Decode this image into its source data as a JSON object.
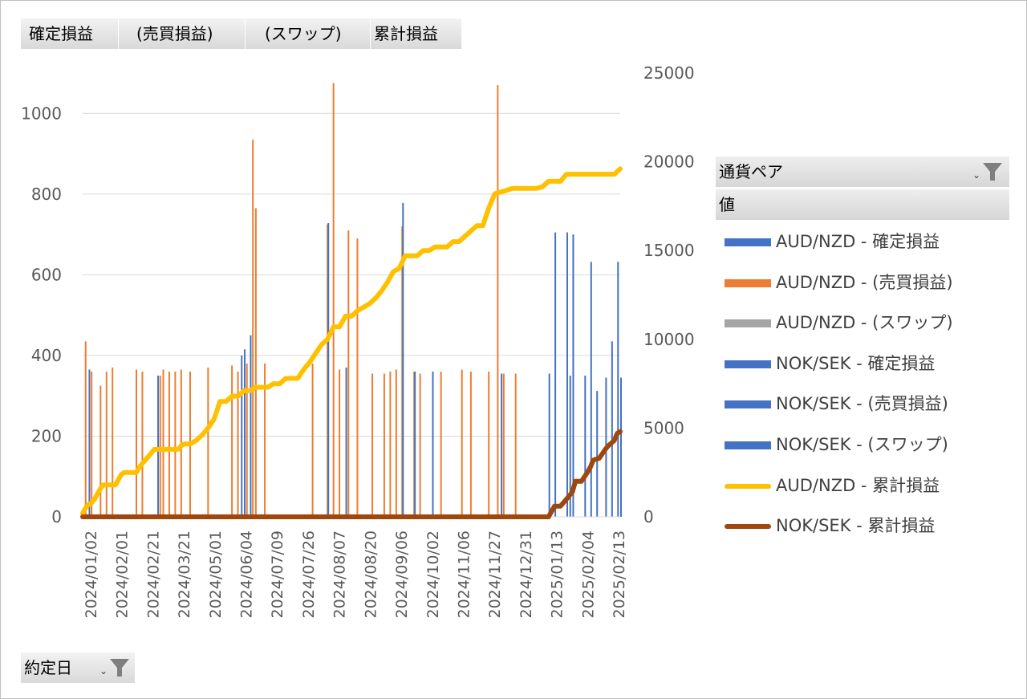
{
  "filters_top": [
    "確定損益",
    "(売買損益)",
    "(スワップ)",
    "累計損益"
  ],
  "date_filter": "約定日",
  "legend_header": {
    "field": "通貨ペア",
    "values": "値"
  },
  "legend": [
    {
      "label": "AUD/NZD -  確定損益",
      "color": "#4472C4",
      "kind": "bar"
    },
    {
      "label": "AUD/NZD -     (売買損益)",
      "color": "#ED7D31",
      "kind": "bar"
    },
    {
      "label": "AUD/NZD -     (スワップ)",
      "color": "#A5A5A5",
      "kind": "bar"
    },
    {
      "label": "NOK/SEK -  確定損益",
      "color": "#4472C4",
      "kind": "bar"
    },
    {
      "label": "NOK/SEK -     (売買損益)",
      "color": "#4472C4",
      "kind": "bar"
    },
    {
      "label": "NOK/SEK -     (スワップ)",
      "color": "#4472C4",
      "kind": "bar"
    },
    {
      "label": "AUD/NZD - 累計損益",
      "color": "#FFC000",
      "kind": "line"
    },
    {
      "label": "NOK/SEK - 累計損益",
      "color": "#9E480E",
      "kind": "line"
    }
  ],
  "chart_data": {
    "type": "bar",
    "y_left": {
      "ylim": [
        0,
        1100
      ],
      "ticks": [
        "0",
        "200",
        "400",
        "600",
        "800",
        "1000"
      ]
    },
    "y_right": {
      "ylim": [
        0,
        25000
      ],
      "ticks": [
        "0",
        "5000",
        "10000",
        "15000",
        "20000",
        "25000"
      ]
    },
    "x_tick_labels": [
      "2024/01/02",
      "2024/02/01",
      "2024/02/21",
      "2024/03/21",
      "2024/05/01",
      "2024/06/04",
      "2024/07/09",
      "2024/07/26",
      "2024/08/07",
      "2024/08/20",
      "2024/09/06",
      "2024/10/02",
      "2024/11/06",
      "2024/11/27",
      "2024/12/31",
      "2025/01/13",
      "2025/02/04",
      "2025/02/13"
    ],
    "bars_aud_nzd": [
      {
        "i": 1,
        "v": 435
      },
      {
        "i": 3,
        "v": 360
      },
      {
        "i": 6,
        "v": 325
      },
      {
        "i": 8,
        "v": 360
      },
      {
        "i": 10,
        "v": 370
      },
      {
        "i": 18,
        "v": 365
      },
      {
        "i": 20,
        "v": 360
      },
      {
        "i": 26,
        "v": 350
      },
      {
        "i": 27,
        "v": 365
      },
      {
        "i": 29,
        "v": 360
      },
      {
        "i": 31,
        "v": 360
      },
      {
        "i": 33,
        "v": 365
      },
      {
        "i": 36,
        "v": 360
      },
      {
        "i": 42,
        "v": 370
      },
      {
        "i": 50,
        "v": 375
      },
      {
        "i": 52,
        "v": 360
      },
      {
        "i": 55,
        "v": 380
      },
      {
        "i": 57,
        "v": 935
      },
      {
        "i": 58,
        "v": 765
      },
      {
        "i": 61,
        "v": 380
      },
      {
        "i": 77,
        "v": 380
      },
      {
        "i": 82,
        "v": 725
      },
      {
        "i": 84,
        "v": 1075
      },
      {
        "i": 86,
        "v": 365
      },
      {
        "i": 89,
        "v": 710
      },
      {
        "i": 92,
        "v": 690
      },
      {
        "i": 97,
        "v": 355
      },
      {
        "i": 101,
        "v": 355
      },
      {
        "i": 103,
        "v": 360
      },
      {
        "i": 105,
        "v": 365
      },
      {
        "i": 107,
        "v": 720
      },
      {
        "i": 111,
        "v": 360
      },
      {
        "i": 113,
        "v": 355
      },
      {
        "i": 120,
        "v": 360
      },
      {
        "i": 127,
        "v": 365
      },
      {
        "i": 130,
        "v": 360
      },
      {
        "i": 136,
        "v": 360
      },
      {
        "i": 139,
        "v": 1070
      },
      {
        "i": 141,
        "v": 355
      },
      {
        "i": 145,
        "v": 355
      }
    ],
    "bars_nok_sek": [
      {
        "i": 2,
        "v": 365
      },
      {
        "i": 25,
        "v": 350
      },
      {
        "i": 53,
        "v": 400
      },
      {
        "i": 54,
        "v": 415
      },
      {
        "i": 56,
        "v": 450
      },
      {
        "i": 82,
        "v": 728
      },
      {
        "i": 88,
        "v": 370
      },
      {
        "i": 107,
        "v": 778
      },
      {
        "i": 111,
        "v": 360
      },
      {
        "i": 117,
        "v": 360
      },
      {
        "i": 140,
        "v": 355
      },
      {
        "i": 156,
        "v": 355
      },
      {
        "i": 158,
        "v": 705
      },
      {
        "i": 162,
        "v": 705
      },
      {
        "i": 163,
        "v": 350
      },
      {
        "i": 164,
        "v": 700
      },
      {
        "i": 168,
        "v": 350
      },
      {
        "i": 170,
        "v": 632
      },
      {
        "i": 172,
        "v": 312
      },
      {
        "i": 175,
        "v": 345
      },
      {
        "i": 177,
        "v": 435
      },
      {
        "i": 179,
        "v": 632
      },
      {
        "i": 180,
        "v": 345
      }
    ],
    "line_aud_nzd": [
      [
        0,
        200
      ],
      [
        1,
        500
      ],
      [
        2,
        700
      ],
      [
        3,
        800
      ],
      [
        4,
        1000
      ],
      [
        5,
        1300
      ],
      [
        6,
        1600
      ],
      [
        7,
        1800
      ],
      [
        8,
        1800
      ],
      [
        10,
        1800
      ],
      [
        11,
        1800
      ],
      [
        12,
        2100
      ],
      [
        13,
        2400
      ],
      [
        14,
        2500
      ],
      [
        15,
        2500
      ],
      [
        16,
        2500
      ],
      [
        17,
        2500
      ],
      [
        18,
        2500
      ],
      [
        19,
        2800
      ],
      [
        20,
        3000
      ],
      [
        21,
        3200
      ],
      [
        22,
        3400
      ],
      [
        23,
        3600
      ],
      [
        24,
        3800
      ],
      [
        25,
        3800
      ],
      [
        26,
        3800
      ],
      [
        27,
        3800
      ],
      [
        28,
        3800
      ],
      [
        30,
        3800
      ],
      [
        32,
        3800
      ],
      [
        33,
        4000
      ],
      [
        34,
        4100
      ],
      [
        35,
        4100
      ],
      [
        36,
        4100
      ],
      [
        37,
        4200
      ],
      [
        38,
        4300
      ],
      [
        40,
        4600
      ],
      [
        42,
        5000
      ],
      [
        44,
        5500
      ],
      [
        46,
        6500
      ],
      [
        48,
        6500
      ],
      [
        50,
        6800
      ],
      [
        52,
        6800
      ],
      [
        54,
        7100
      ],
      [
        56,
        7100
      ],
      [
        58,
        7300
      ],
      [
        60,
        7300
      ],
      [
        62,
        7300
      ],
      [
        64,
        7500
      ],
      [
        66,
        7500
      ],
      [
        68,
        7800
      ],
      [
        70,
        7800
      ],
      [
        72,
        7800
      ],
      [
        74,
        8300
      ],
      [
        76,
        8700
      ],
      [
        78,
        9200
      ],
      [
        80,
        9700
      ],
      [
        82,
        10000
      ],
      [
        84,
        10700
      ],
      [
        86,
        10700
      ],
      [
        88,
        11300
      ],
      [
        90,
        11300
      ],
      [
        92,
        11600
      ],
      [
        94,
        11800
      ],
      [
        96,
        12000
      ],
      [
        98,
        12300
      ],
      [
        100,
        12700
      ],
      [
        102,
        13200
      ],
      [
        104,
        13800
      ],
      [
        106,
        14000
      ],
      [
        108,
        14700
      ],
      [
        110,
        14700
      ],
      [
        112,
        14700
      ],
      [
        114,
        15000
      ],
      [
        116,
        15000
      ],
      [
        118,
        15200
      ],
      [
        120,
        15200
      ],
      [
        122,
        15200
      ],
      [
        124,
        15500
      ],
      [
        126,
        15500
      ],
      [
        128,
        15800
      ],
      [
        130,
        16100
      ],
      [
        132,
        16400
      ],
      [
        134,
        16400
      ],
      [
        136,
        17400
      ],
      [
        138,
        18200
      ],
      [
        140,
        18300
      ],
      [
        142,
        18400
      ],
      [
        144,
        18500
      ],
      [
        146,
        18500
      ],
      [
        148,
        18500
      ],
      [
        150,
        18500
      ],
      [
        152,
        18500
      ],
      [
        154,
        18600
      ],
      [
        156,
        18900
      ],
      [
        158,
        18900
      ],
      [
        160,
        18900
      ],
      [
        162,
        19300
      ],
      [
        164,
        19300
      ],
      [
        166,
        19300
      ],
      [
        168,
        19300
      ],
      [
        170,
        19300
      ],
      [
        172,
        19300
      ],
      [
        174,
        19300
      ],
      [
        176,
        19300
      ],
      [
        178,
        19300
      ],
      [
        180,
        19600
      ]
    ],
    "line_nok_sek": [
      [
        0,
        0
      ],
      [
        150,
        0
      ],
      [
        155,
        0
      ],
      [
        156,
        0
      ],
      [
        158,
        600
      ],
      [
        160,
        600
      ],
      [
        162,
        1000
      ],
      [
        163,
        1200
      ],
      [
        164,
        1400
      ],
      [
        165,
        2000
      ],
      [
        167,
        2000
      ],
      [
        169,
        2500
      ],
      [
        170,
        2800
      ],
      [
        171,
        3200
      ],
      [
        173,
        3300
      ],
      [
        175,
        3800
      ],
      [
        176,
        4000
      ],
      [
        178,
        4300
      ],
      [
        179,
        4700
      ],
      [
        180,
        4800
      ]
    ],
    "n_points": 181
  }
}
